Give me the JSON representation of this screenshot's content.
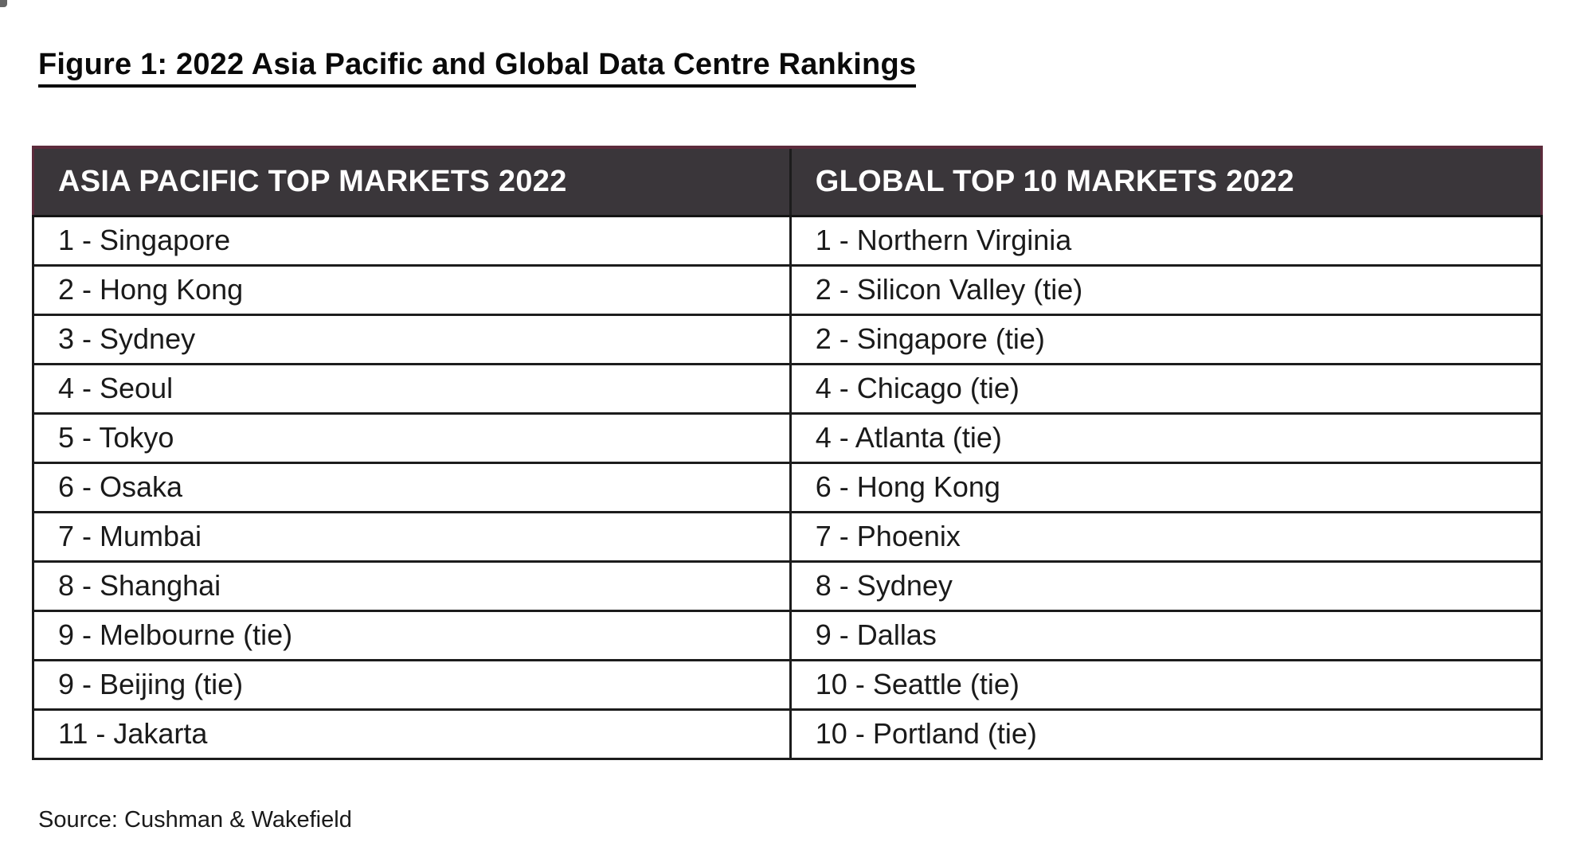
{
  "figure": {
    "title": "Figure 1: 2022 Asia Pacific and Global Data Centre Rankings",
    "source": "Source: Cushman & Wakefield"
  },
  "table": {
    "headers": [
      "ASIA PACIFIC TOP MARKETS 2022",
      "GLOBAL TOP 10 MARKETS 2022"
    ],
    "rows": [
      {
        "asia_pacific": "1 - Singapore",
        "global": "1 - Northern Virginia"
      },
      {
        "asia_pacific": "2 - Hong Kong",
        "global": "2 - Silicon Valley (tie)"
      },
      {
        "asia_pacific": "3 - Sydney",
        "global": "2 - Singapore (tie)"
      },
      {
        "asia_pacific": "4 - Seoul",
        "global": "4 - Chicago (tie)"
      },
      {
        "asia_pacific": "5 - Tokyo",
        "global": "4 - Atlanta (tie)"
      },
      {
        "asia_pacific": "6 - Osaka",
        "global": "6 - Hong Kong"
      },
      {
        "asia_pacific": "7 - Mumbai",
        "global": "7 - Phoenix"
      },
      {
        "asia_pacific": "8 - Shanghai",
        "global": "8 - Sydney"
      },
      {
        "asia_pacific": "9 - Melbourne (tie)",
        "global": "9 - Dallas"
      },
      {
        "asia_pacific": "9 - Beijing (tie)",
        "global": "10 - Seattle (tie)"
      },
      {
        "asia_pacific": "11 - Jakarta",
        "global": "10 - Portland (tie)"
      }
    ]
  },
  "colors": {
    "header_background": "#3a363a",
    "header_text": "#ffffff",
    "header_border": "#5c2b3c",
    "body_border": "#1c1c1c",
    "body_text": "#1a1a1a"
  },
  "chart_data": {
    "type": "table",
    "title": "Figure 1: 2022 Asia Pacific and Global Data Centre Rankings",
    "columns": [
      "ASIA PACIFIC TOP MARKETS 2022",
      "GLOBAL TOP 10 MARKETS 2022"
    ],
    "rows": [
      [
        "1 - Singapore",
        "1 - Northern Virginia"
      ],
      [
        "2 - Hong Kong",
        "2 - Silicon Valley (tie)"
      ],
      [
        "3 - Sydney",
        "2 - Singapore (tie)"
      ],
      [
        "4 - Seoul",
        "4 - Chicago (tie)"
      ],
      [
        "5 - Tokyo",
        "4 - Atlanta (tie)"
      ],
      [
        "6 - Osaka",
        "6 - Hong Kong"
      ],
      [
        "7 - Mumbai",
        "7 - Phoenix"
      ],
      [
        "8 - Shanghai",
        "8 - Sydney"
      ],
      [
        "9 - Melbourne (tie)",
        "9 - Dallas"
      ],
      [
        "9 - Beijing (tie)",
        "10 - Seattle (tie)"
      ],
      [
        "11 - Jakarta",
        "10 - Portland (tie)"
      ]
    ],
    "source": "Source: Cushman & Wakefield"
  }
}
